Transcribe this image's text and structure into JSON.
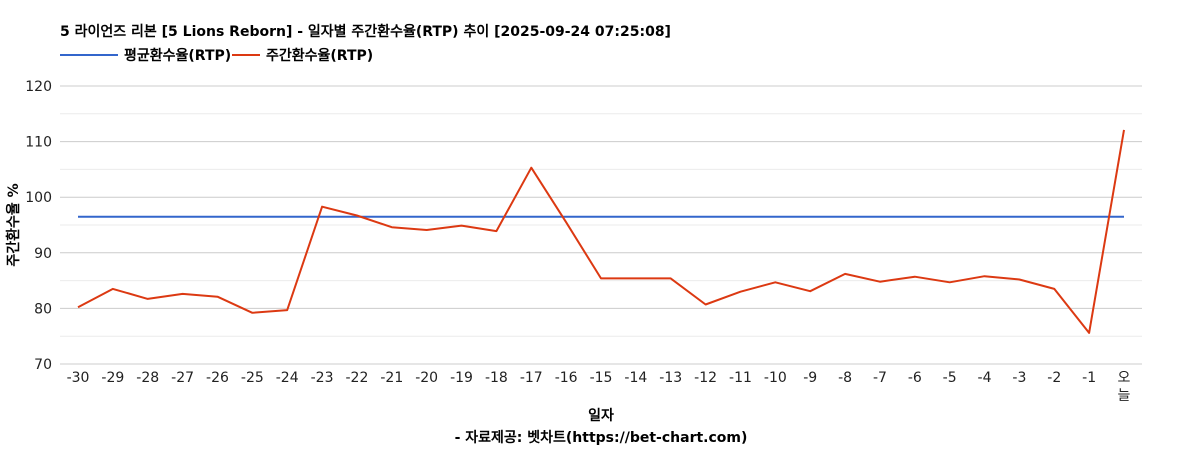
{
  "chart_data": {
    "type": "line",
    "title": "5 라이언즈 리본 [5 Lions Reborn] - 일자별 주간환수율(RTP) 추이 [2025-09-24 07:25:08]",
    "xlabel": "일자",
    "ylabel": "주간환수율 %",
    "source": "- 자료제공: 벳차트(https://bet-chart.com)",
    "ylim": [
      70,
      120
    ],
    "yticks": [
      70,
      80,
      90,
      100,
      110,
      120
    ],
    "grid": true,
    "legend_position": "top-left",
    "categories": [
      "-30",
      "-29",
      "-28",
      "-27",
      "-26",
      "-25",
      "-24",
      "-23",
      "-22",
      "-21",
      "-20",
      "-19",
      "-18",
      "-17",
      "-16",
      "-15",
      "-14",
      "-13",
      "-12",
      "-11",
      "-10",
      "-9",
      "-8",
      "-7",
      "-6",
      "-5",
      "-4",
      "-3",
      "-2",
      "-1",
      "오늘"
    ],
    "series": [
      {
        "name": "평균환수율(RTP)",
        "color": "#3366cc",
        "values": [
          96.5,
          96.5,
          96.5,
          96.5,
          96.5,
          96.5,
          96.5,
          96.5,
          96.5,
          96.5,
          96.5,
          96.5,
          96.5,
          96.5,
          96.5,
          96.5,
          96.5,
          96.5,
          96.5,
          96.5,
          96.5,
          96.5,
          96.5,
          96.5,
          96.5,
          96.5,
          96.5,
          96.5,
          96.5,
          96.5,
          96.5
        ]
      },
      {
        "name": "주간환수율(RTP)",
        "color": "#dc3912",
        "values": [
          80.2,
          83.5,
          81.7,
          82.6,
          82.1,
          79.2,
          79.7,
          98.3,
          96.7,
          94.6,
          94.1,
          94.9,
          93.9,
          105.3,
          95.5,
          85.4,
          85.4,
          85.4,
          80.7,
          83.0,
          84.7,
          83.1,
          86.2,
          84.8,
          85.7,
          84.7,
          85.8,
          85.2,
          83.5,
          75.6,
          112.1
        ]
      }
    ]
  }
}
